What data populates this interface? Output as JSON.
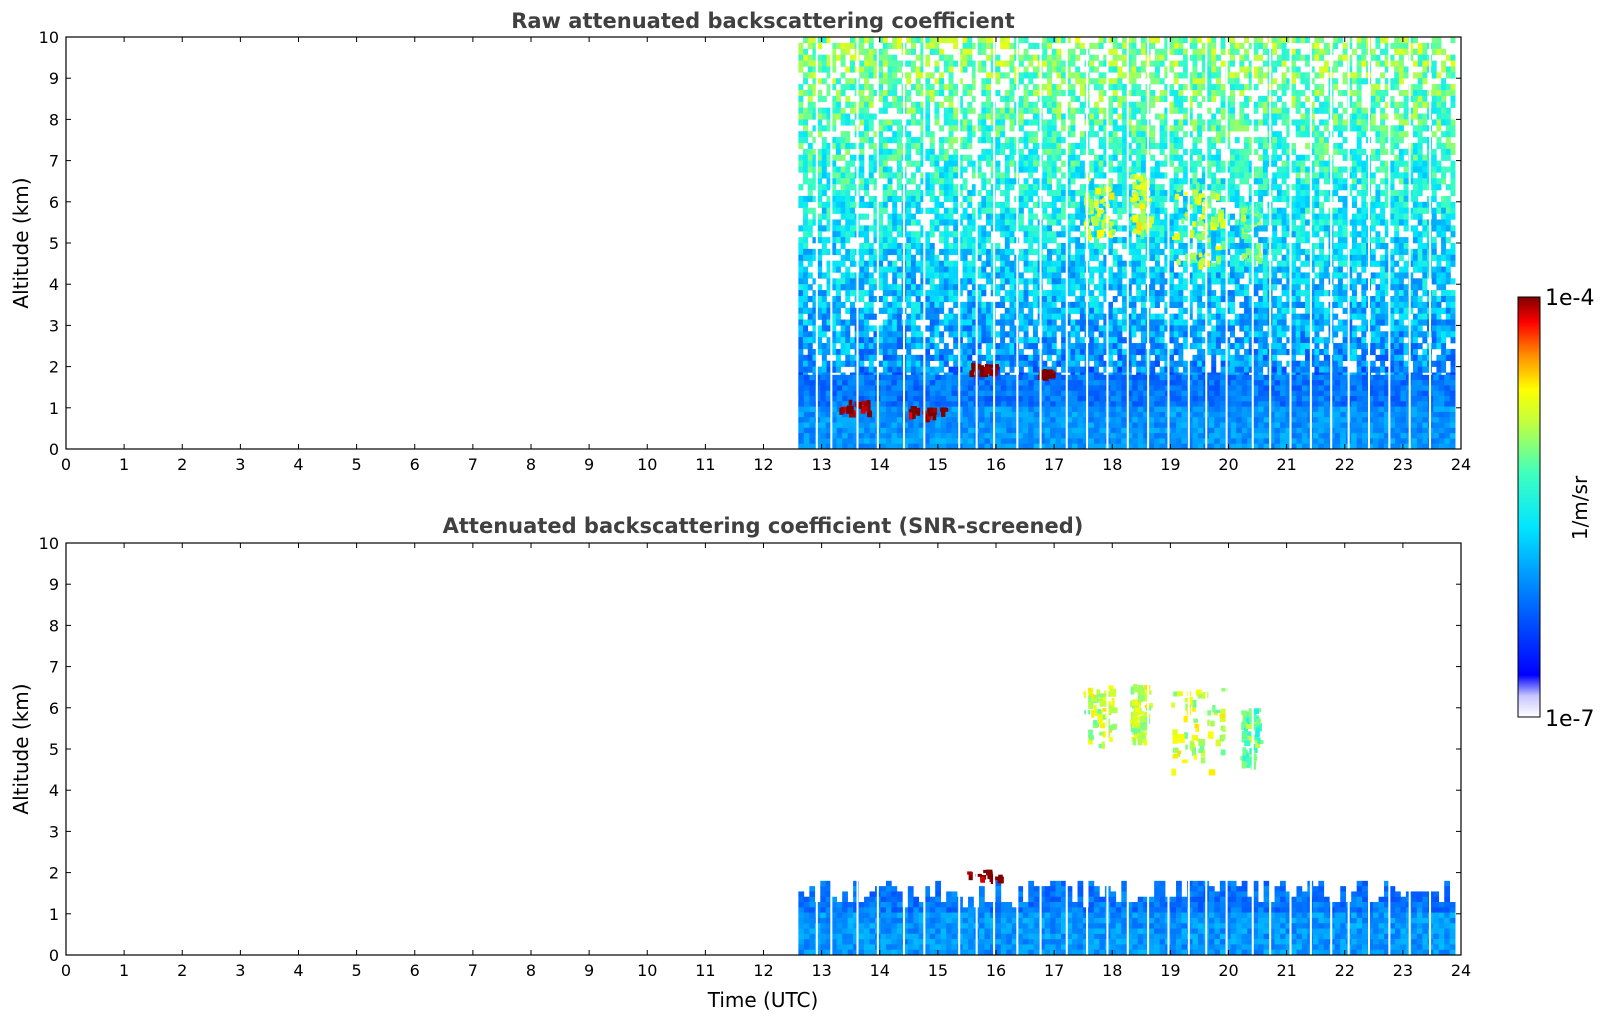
{
  "chart_data": [
    {
      "type": "heatmap",
      "title": "Raw attenuated backscattering coefficient",
      "xlabel": "",
      "ylabel": "Altitude (km)",
      "xlim": [
        0,
        24
      ],
      "ylim": [
        0,
        10
      ],
      "x_ticks": [
        "0",
        "1",
        "2",
        "3",
        "4",
        "5",
        "6",
        "7",
        "8",
        "9",
        "10",
        "11",
        "12",
        "13",
        "14",
        "15",
        "16",
        "17",
        "18",
        "19",
        "20",
        "21",
        "22",
        "23",
        "24"
      ],
      "y_ticks": [
        "0",
        "1",
        "2",
        "3",
        "4",
        "5",
        "6",
        "7",
        "8",
        "9",
        "10"
      ],
      "data_start_hour": 12.6,
      "data_end_hour": 23.9,
      "features": [
        {
          "label": "boundary layer aerosol",
          "t_start": 12.6,
          "t_end": 23.9,
          "alt_bottom": 0,
          "alt_top": 1.8,
          "value": "1e-6"
        },
        {
          "label": "cloud",
          "t_start": 13.3,
          "t_end": 13.8,
          "alt_bottom": 0.9,
          "alt_top": 1.2,
          "value": "1e-4"
        },
        {
          "label": "cloud",
          "t_start": 14.5,
          "t_end": 15.1,
          "alt_bottom": 0.85,
          "alt_top": 1.05,
          "value": "1e-4"
        },
        {
          "label": "cloud",
          "t_start": 15.5,
          "t_end": 16.05,
          "alt_bottom": 1.9,
          "alt_top": 2.1,
          "value": "1e-4"
        },
        {
          "label": "cloud",
          "t_start": 16.7,
          "t_end": 16.95,
          "alt_bottom": 1.8,
          "alt_top": 1.95,
          "value": "1e-4"
        },
        {
          "label": "cirrus",
          "t_start": 17.5,
          "t_end": 18.0,
          "alt_bottom": 5.1,
          "alt_top": 6.6,
          "value": "1e-5"
        },
        {
          "label": "cirrus",
          "t_start": 18.3,
          "t_end": 18.6,
          "alt_bottom": 5.2,
          "alt_top": 6.7,
          "value": "1e-5"
        },
        {
          "label": "cirrus",
          "t_start": 19.0,
          "t_end": 19.9,
          "alt_bottom": 4.5,
          "alt_top": 6.5,
          "value": "1e-5"
        },
        {
          "label": "cirrus",
          "t_start": 20.2,
          "t_end": 20.5,
          "alt_bottom": 4.6,
          "alt_top": 6.0,
          "value": "5e-6"
        }
      ]
    },
    {
      "type": "heatmap",
      "title": "Attenuated backscattering coefficient (SNR-screened)",
      "xlabel": "Time (UTC)",
      "ylabel": "Altitude (km)",
      "xlim": [
        0,
        24
      ],
      "ylim": [
        0,
        10
      ],
      "x_ticks": [
        "0",
        "1",
        "2",
        "3",
        "4",
        "5",
        "6",
        "7",
        "8",
        "9",
        "10",
        "11",
        "12",
        "13",
        "14",
        "15",
        "16",
        "17",
        "18",
        "19",
        "20",
        "21",
        "22",
        "23",
        "24"
      ],
      "y_ticks": [
        "0",
        "1",
        "2",
        "3",
        "4",
        "5",
        "6",
        "7",
        "8",
        "9",
        "10"
      ],
      "data_start_hour": 12.6,
      "data_end_hour": 23.9,
      "features": [
        {
          "label": "boundary layer aerosol",
          "t_start": 12.6,
          "t_end": 23.9,
          "alt_bottom": 0,
          "alt_top": 1.8,
          "value": "1e-6"
        },
        {
          "label": "cloud",
          "t_start": 15.5,
          "t_end": 16.05,
          "alt_bottom": 1.9,
          "alt_top": 2.1,
          "value": "1e-4"
        },
        {
          "label": "cirrus",
          "t_start": 17.5,
          "t_end": 18.0,
          "alt_bottom": 5.1,
          "alt_top": 6.6,
          "value": "1e-5"
        },
        {
          "label": "cirrus",
          "t_start": 18.3,
          "t_end": 18.6,
          "alt_bottom": 5.2,
          "alt_top": 6.7,
          "value": "1e-5"
        },
        {
          "label": "cirrus",
          "t_start": 19.0,
          "t_end": 19.9,
          "alt_bottom": 4.5,
          "alt_top": 6.5,
          "value": "1e-5"
        },
        {
          "label": "cirrus",
          "t_start": 20.2,
          "t_end": 20.5,
          "alt_bottom": 4.6,
          "alt_top": 6.0,
          "value": "5e-6"
        }
      ]
    }
  ],
  "colorbar": {
    "label": "1/m/sr",
    "max_label": "1e-4",
    "min_label": "1e-7",
    "scale": "log",
    "colors": [
      "#ffffff",
      "#0000ff",
      "#00bfff",
      "#3fffbf",
      "#ffff00",
      "#ff8000",
      "#ff0000",
      "#800000"
    ]
  }
}
